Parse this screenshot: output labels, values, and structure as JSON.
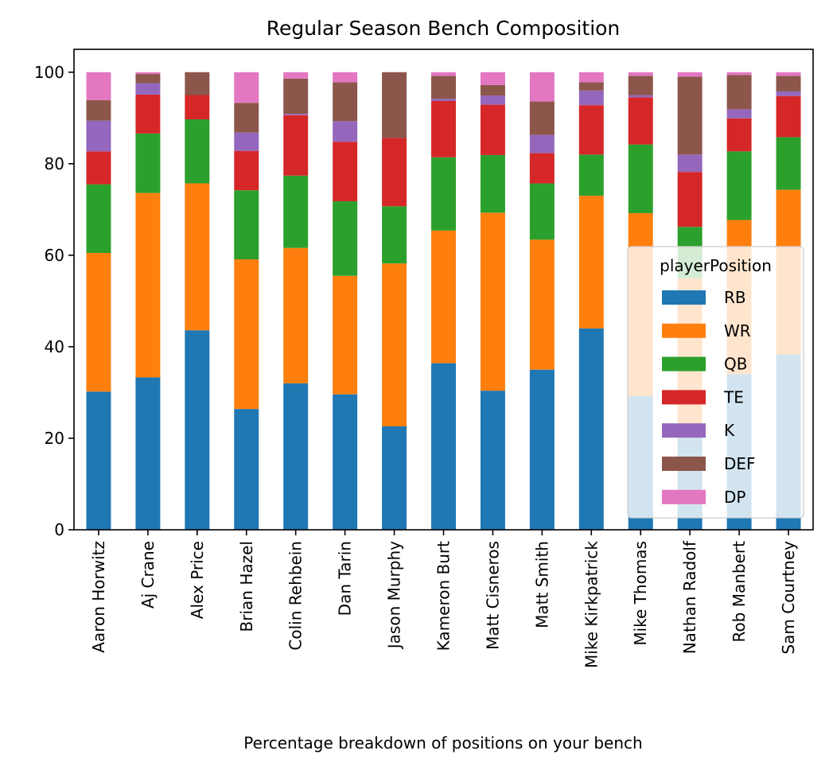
{
  "chart_data": {
    "type": "bar",
    "stacked": true,
    "title": "Regular Season Bench Composition",
    "xlabel": "Percentage breakdown of positions on your bench",
    "ylabel": "",
    "ylim": [
      0,
      105
    ],
    "yticks": [
      0,
      20,
      40,
      60,
      80,
      100
    ],
    "grid": false,
    "legend_title": "playerPosition",
    "legend_position": "center-right",
    "categories": [
      "Aaron Horwitz",
      "Aj Crane",
      "Alex Price",
      "Brian Hazel",
      "Colin Rehbein",
      "Dan Tarin",
      "Jason Murphy",
      "Kameron Burt",
      "Matt Cisneros",
      "Matt Smith",
      "Mike Kirkpatrick",
      "Mike Thomas",
      "Nathan Radolf",
      "Rob Manbert",
      "Sam Courtney"
    ],
    "series": [
      {
        "name": "RB",
        "color": "#1f77b4",
        "values": [
          30.2,
          33.3,
          43.6,
          26.4,
          32.0,
          29.6,
          22.6,
          36.4,
          30.4,
          35.0,
          44.0,
          29.2,
          21.0,
          34.0,
          38.3
        ]
      },
      {
        "name": "WR",
        "color": "#ff7f0e",
        "values": [
          30.3,
          40.3,
          32.1,
          32.7,
          29.6,
          25.9,
          35.6,
          29.0,
          38.9,
          28.4,
          29.0,
          40.0,
          34.0,
          33.7,
          36.0
        ]
      },
      {
        "name": "QB",
        "color": "#2ca02c",
        "values": [
          15.0,
          13.0,
          14.0,
          15.1,
          15.8,
          16.3,
          12.5,
          16.0,
          12.6,
          12.3,
          9.0,
          15.0,
          11.2,
          15.0,
          11.5
        ]
      },
      {
        "name": "TE",
        "color": "#d62728",
        "values": [
          7.2,
          8.5,
          5.3,
          8.6,
          13.2,
          13.0,
          14.9,
          12.3,
          11.0,
          6.6,
          10.8,
          10.3,
          12.0,
          7.2,
          9.0
        ]
      },
      {
        "name": "K",
        "color": "#9467bd",
        "values": [
          6.7,
          2.5,
          0,
          4.0,
          0.3,
          4.5,
          0,
          0.5,
          2.0,
          4.0,
          3.2,
          0.5,
          3.8,
          2.0,
          1.0
        ]
      },
      {
        "name": "DEF",
        "color": "#8c564b",
        "values": [
          4.5,
          2.0,
          5.0,
          6.5,
          7.7,
          8.5,
          14.4,
          5.0,
          2.3,
          7.3,
          1.8,
          4.2,
          17.0,
          7.5,
          3.4
        ]
      },
      {
        "name": "DP",
        "color": "#e377c2",
        "values": [
          6.1,
          0.4,
          0,
          6.7,
          1.4,
          2.2,
          0,
          0.8,
          2.8,
          6.4,
          2.2,
          0.8,
          1.0,
          0.6,
          0.8
        ]
      }
    ]
  }
}
